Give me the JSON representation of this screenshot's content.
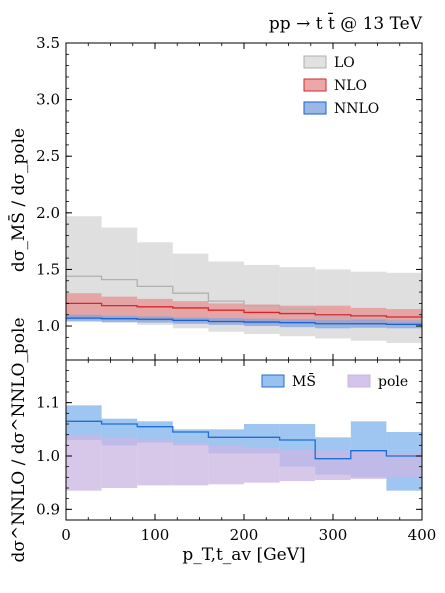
{
  "chart_data": [
    {
      "type": "step-band",
      "panel": "top",
      "title": "pp → t t̄ @ 13 TeV",
      "ylabel": "dσ_MS̄ / dσ_pole",
      "ylim": [
        0.7,
        3.5
      ],
      "yticks": [
        1.0,
        1.5,
        2.0,
        2.5,
        3.0,
        3.5
      ],
      "ytick_labels": [
        "1.0",
        "1.5",
        "2.0",
        "2.5",
        "3.0",
        "3.5"
      ],
      "xlim": [
        0,
        400
      ],
      "bin_edges": [
        0,
        40,
        80,
        120,
        160,
        200,
        240,
        280,
        320,
        360,
        400
      ],
      "legend_position": "top-right",
      "series": [
        {
          "name": "LO",
          "fill": "#d9d9d9",
          "line": "#b0b0b0",
          "central": [
            1.44,
            1.41,
            1.35,
            1.29,
            1.22,
            1.18,
            1.15,
            1.08,
            1.06,
            1.04
          ],
          "lower": [
            1.05,
            1.03,
            1.01,
            0.98,
            0.95,
            0.93,
            0.91,
            0.89,
            0.87,
            0.85
          ],
          "upper": [
            1.97,
            1.87,
            1.74,
            1.64,
            1.57,
            1.54,
            1.52,
            1.5,
            1.48,
            1.47
          ]
        },
        {
          "name": "NLO",
          "fill": "#e79292",
          "line": "#d62728",
          "central": [
            1.2,
            1.18,
            1.17,
            1.16,
            1.14,
            1.12,
            1.11,
            1.1,
            1.09,
            1.08
          ],
          "lower": [
            1.07,
            1.06,
            1.05,
            1.04,
            1.03,
            1.02,
            1.02,
            1.02,
            1.01,
            1.01
          ],
          "upper": [
            1.29,
            1.26,
            1.24,
            1.22,
            1.2,
            1.19,
            1.18,
            1.18,
            1.16,
            1.15
          ]
        },
        {
          "name": "NNLO",
          "fill": "#7fa6e0",
          "line": "#1f5fd0",
          "central": [
            1.07,
            1.065,
            1.06,
            1.05,
            1.04,
            1.035,
            1.03,
            1.02,
            1.02,
            1.015
          ],
          "lower": [
            1.04,
            1.035,
            1.03,
            1.02,
            1.01,
            1.0,
            0.99,
            0.98,
            0.985,
            0.98
          ],
          "upper": [
            1.1,
            1.09,
            1.085,
            1.075,
            1.07,
            1.065,
            1.06,
            1.055,
            1.055,
            1.05
          ]
        }
      ]
    },
    {
      "type": "step-band",
      "panel": "bottom",
      "ylabel": "dσ^NNLO / dσ^NNLO_pole",
      "xlabel": "p_T,t_av [GeV]",
      "ylim": [
        0.88,
        1.18
      ],
      "yticks": [
        0.9,
        1.0,
        1.1
      ],
      "ytick_labels": [
        "0.9",
        "1.0",
        "1.1"
      ],
      "xlim": [
        0,
        400
      ],
      "xticks": [
        0,
        100,
        200,
        300,
        400
      ],
      "xtick_labels": [
        "0",
        "100",
        "200",
        "300",
        "400"
      ],
      "bin_edges": [
        0,
        40,
        80,
        120,
        160,
        200,
        240,
        280,
        320,
        360,
        400
      ],
      "legend_position": "top-right",
      "series": [
        {
          "name": "MS̄",
          "fill": "#7fb2ec",
          "line": "#1f6fd0",
          "central": [
            1.065,
            1.06,
            1.055,
            1.045,
            1.035,
            1.035,
            1.03,
            0.995,
            1.01,
            1.0
          ],
          "lower": [
            1.03,
            1.02,
            1.025,
            1.02,
            1.005,
            1.005,
            0.98,
            0.965,
            0.96,
            0.935
          ],
          "upper": [
            1.095,
            1.07,
            1.065,
            1.05,
            1.05,
            1.06,
            1.06,
            1.035,
            1.065,
            1.045
          ]
        },
        {
          "name": "pole",
          "fill": "#c9b5e3",
          "line": "#c9b5e3",
          "central": [
            1.0,
            1.0,
            1.0,
            1.0,
            1.0,
            1.0,
            1.0,
            1.0,
            1.0,
            1.0
          ],
          "lower": [
            0.935,
            0.94,
            0.945,
            0.945,
            0.947,
            0.95,
            0.953,
            0.955,
            0.957,
            0.96
          ],
          "upper": [
            1.04,
            1.035,
            1.03,
            1.025,
            1.02,
            1.015,
            1.012,
            1.01,
            1.008,
            1.005
          ]
        }
      ]
    }
  ]
}
